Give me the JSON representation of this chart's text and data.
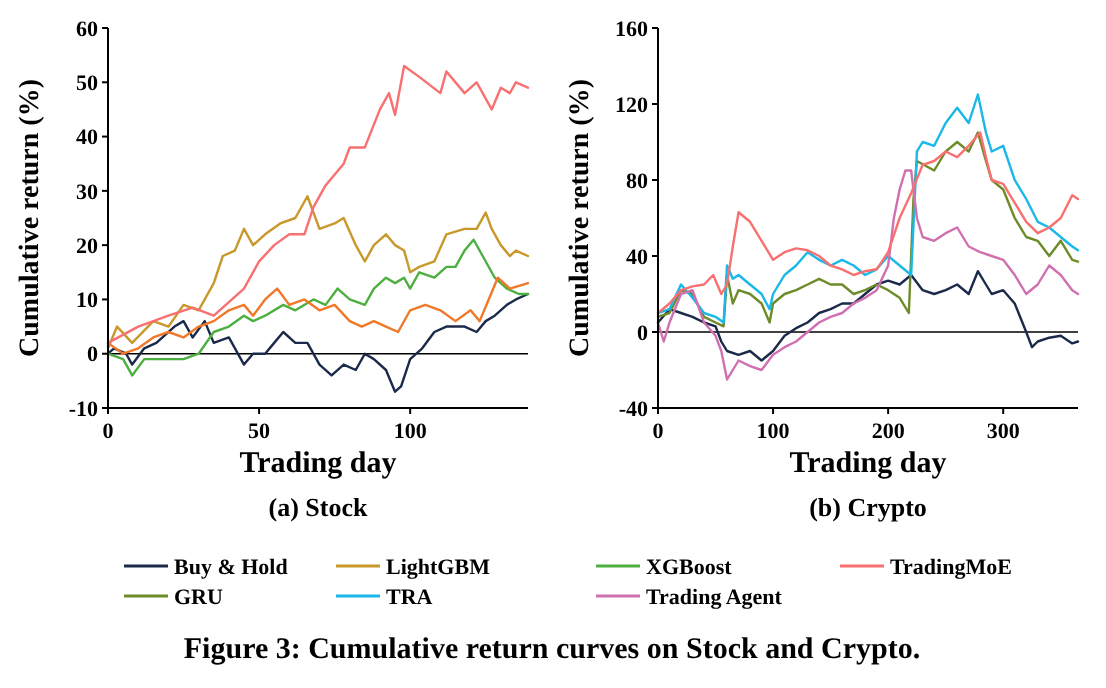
{
  "chart_data": [
    {
      "type": "line",
      "title": "(a) Stock",
      "xlabel": "Trading day",
      "ylabel": "Cumulative return (%)",
      "xlim": [
        0,
        139
      ],
      "xticks": [
        0,
        50,
        100
      ],
      "ylim": [
        -10,
        60
      ],
      "yticks": [
        -10,
        0,
        10,
        20,
        30,
        40,
        50,
        60
      ],
      "legend": "bottom",
      "ref_lines": [
        {
          "axis": "y",
          "value": 0,
          "color": "#000000"
        }
      ],
      "series": [
        {
          "name": "Buy & Hold",
          "color": "#1b2a4a",
          "x": [
            0,
            2,
            6,
            8,
            12,
            16,
            22,
            25,
            28,
            32,
            35,
            40,
            45,
            48,
            52,
            55,
            58,
            62,
            66,
            70,
            74,
            78,
            82,
            85,
            88,
            92,
            95,
            97,
            100,
            104,
            108,
            112,
            118,
            122,
            125,
            128,
            132,
            135,
            139
          ],
          "values": [
            0,
            1,
            0,
            -2,
            1,
            2,
            5,
            6,
            3,
            6,
            2,
            3,
            -2,
            0,
            0,
            2,
            4,
            2,
            2,
            -2,
            -4,
            -2,
            -3,
            0,
            -1,
            -3,
            -7,
            -6,
            -1,
            1,
            4,
            5,
            5,
            4,
            6,
            7,
            9,
            10,
            11
          ]
        },
        {
          "name": "LightGBM",
          "color": "#c8982a",
          "x": [
            0,
            3,
            8,
            15,
            20,
            25,
            30,
            35,
            38,
            42,
            45,
            48,
            52,
            57,
            62,
            66,
            70,
            75,
            78,
            82,
            85,
            88,
            92,
            95,
            98,
            100,
            103,
            108,
            112,
            118,
            122,
            125,
            127,
            130,
            133,
            135,
            139
          ],
          "values": [
            1,
            5,
            2,
            6,
            5,
            9,
            8,
            13,
            18,
            19,
            23,
            20,
            22,
            24,
            25,
            29,
            23,
            24,
            25,
            20,
            17,
            20,
            22,
            20,
            19,
            15,
            16,
            17,
            22,
            23,
            23,
            26,
            23,
            20,
            18,
            19,
            18
          ]
        },
        {
          "name": "XGBoost",
          "color": "#4cb040",
          "x": [
            0,
            5,
            8,
            12,
            18,
            25,
            30,
            35,
            40,
            45,
            48,
            52,
            58,
            62,
            68,
            72,
            76,
            80,
            85,
            88,
            92,
            95,
            98,
            100,
            103,
            108,
            112,
            115,
            118,
            121,
            124,
            128,
            132,
            136,
            139
          ],
          "values": [
            0,
            -1,
            -4,
            -1,
            -1,
            -1,
            0,
            4,
            5,
            7,
            6,
            7,
            9,
            8,
            10,
            9,
            12,
            10,
            9,
            12,
            14,
            13,
            14,
            12,
            15,
            14,
            16,
            16,
            19,
            21,
            18,
            14,
            12,
            11,
            11
          ]
        },
        {
          "color": "#f07828",
          "x": [
            0,
            5,
            10,
            15,
            20,
            25,
            30,
            35,
            40,
            45,
            48,
            52,
            56,
            60,
            65,
            70,
            75,
            80,
            84,
            88,
            92,
            96,
            100,
            105,
            110,
            115,
            120,
            123,
            126,
            129,
            133,
            139
          ],
          "values": [
            2,
            0,
            1,
            3,
            4,
            3,
            5,
            6,
            8,
            9,
            7,
            10,
            12,
            9,
            10,
            8,
            9,
            6,
            5,
            6,
            5,
            4,
            8,
            9,
            8,
            6,
            8,
            6,
            10,
            14,
            12,
            13
          ]
        },
        {
          "name": "TradingMoE",
          "color": "#f87070",
          "x": [
            0,
            10,
            20,
            28,
            35,
            45,
            50,
            55,
            60,
            65,
            68,
            72,
            78,
            80,
            85,
            90,
            93,
            95,
            98,
            103,
            110,
            112,
            118,
            122,
            125,
            127,
            130,
            133,
            135,
            139
          ],
          "values": [
            2,
            5,
            7,
            8.5,
            7,
            12,
            17,
            20,
            22,
            22,
            27,
            31,
            35,
            38,
            38,
            45,
            48,
            44,
            53,
            51,
            48,
            52,
            48,
            50,
            47,
            45,
            49,
            48,
            50,
            49
          ]
        }
      ]
    },
    {
      "type": "line",
      "title": "(b) Crypto",
      "xlabel": "Trading day",
      "ylabel": "Cumulative return (%)",
      "xlim": [
        0,
        365
      ],
      "xticks": [
        0,
        100,
        200,
        300
      ],
      "ylim": [
        -40,
        160
      ],
      "yticks": [
        -40,
        0,
        40,
        80,
        120,
        160
      ],
      "legend": "bottom",
      "ref_lines": [
        {
          "axis": "y",
          "value": 0,
          "color": "#000000"
        }
      ],
      "annotations": [
        "Figure 3: Cumulative return curves on Stock and Crypto."
      ],
      "series": [
        {
          "name": "Buy & Hold",
          "color": "#1b2a4a",
          "x": [
            0,
            10,
            20,
            30,
            40,
            50,
            55,
            60,
            70,
            80,
            90,
            100,
            110,
            120,
            130,
            140,
            150,
            160,
            170,
            180,
            190,
            200,
            210,
            220,
            230,
            240,
            250,
            260,
            270,
            278,
            285,
            290,
            300,
            310,
            320,
            325,
            330,
            340,
            350,
            360,
            365
          ],
          "values": [
            5,
            12,
            10,
            8,
            5,
            3,
            -5,
            -10,
            -12,
            -10,
            -15,
            -10,
            -2,
            2,
            5,
            10,
            12,
            15,
            15,
            20,
            25,
            27,
            25,
            30,
            22,
            20,
            22,
            25,
            20,
            32,
            25,
            20,
            22,
            15,
            0,
            -8,
            -5,
            -3,
            -2,
            -6,
            -5
          ]
        },
        {
          "name": "GRU",
          "color": "#6e8b2a",
          "x": [
            0,
            10,
            20,
            30,
            40,
            50,
            57,
            60,
            65,
            70,
            80,
            90,
            97,
            100,
            110,
            120,
            130,
            140,
            150,
            160,
            170,
            180,
            190,
            200,
            210,
            218,
            222,
            225,
            240,
            250,
            260,
            270,
            278,
            285,
            290,
            300,
            310,
            320,
            330,
            340,
            350,
            360,
            365
          ],
          "values": [
            8,
            10,
            22,
            20,
            8,
            5,
            3,
            30,
            15,
            22,
            20,
            15,
            5,
            15,
            20,
            22,
            25,
            28,
            25,
            25,
            20,
            22,
            25,
            22,
            18,
            10,
            70,
            90,
            85,
            95,
            100,
            95,
            105,
            90,
            80,
            75,
            60,
            50,
            48,
            40,
            48,
            38,
            37
          ]
        },
        {
          "name": "TRA",
          "color": "#1ab8e8",
          "x": [
            0,
            10,
            20,
            30,
            40,
            50,
            57,
            60,
            65,
            70,
            80,
            90,
            97,
            100,
            110,
            120,
            130,
            140,
            150,
            160,
            170,
            180,
            190,
            200,
            210,
            220,
            225,
            230,
            240,
            250,
            260,
            270,
            278,
            285,
            290,
            300,
            310,
            320,
            330,
            340,
            350,
            360,
            365
          ],
          "values": [
            10,
            12,
            25,
            18,
            10,
            8,
            5,
            35,
            28,
            30,
            25,
            20,
            12,
            20,
            30,
            35,
            42,
            38,
            35,
            38,
            35,
            30,
            33,
            40,
            35,
            30,
            95,
            100,
            98,
            110,
            118,
            110,
            125,
            105,
            95,
            98,
            80,
            70,
            58,
            55,
            50,
            45,
            43
          ]
        },
        {
          "name": "Trading Agent",
          "color": "#d070b0",
          "x": [
            0,
            5,
            10,
            20,
            30,
            40,
            50,
            55,
            60,
            70,
            80,
            90,
            100,
            110,
            120,
            130,
            140,
            150,
            160,
            170,
            180,
            190,
            200,
            205,
            210,
            215,
            220,
            225,
            230,
            240,
            250,
            260,
            270,
            280,
            290,
            300,
            310,
            320,
            330,
            340,
            350,
            360,
            365
          ],
          "values": [
            5,
            -5,
            5,
            20,
            22,
            5,
            -2,
            -10,
            -25,
            -15,
            -18,
            -20,
            -12,
            -8,
            -5,
            0,
            5,
            8,
            10,
            15,
            18,
            22,
            35,
            60,
            75,
            85,
            85,
            60,
            50,
            48,
            52,
            55,
            45,
            42,
            40,
            38,
            30,
            20,
            25,
            35,
            30,
            22,
            20
          ]
        },
        {
          "name": "TradingMoE",
          "color": "#f87070",
          "x": [
            0,
            10,
            20,
            30,
            40,
            48,
            55,
            60,
            65,
            70,
            80,
            90,
            100,
            110,
            120,
            130,
            140,
            150,
            160,
            170,
            180,
            190,
            200,
            210,
            220,
            230,
            240,
            250,
            260,
            270,
            280,
            285,
            290,
            300,
            310,
            320,
            330,
            340,
            350,
            360,
            365
          ],
          "values": [
            10,
            15,
            22,
            24,
            25,
            30,
            20,
            25,
            45,
            63,
            58,
            48,
            38,
            42,
            44,
            43,
            40,
            35,
            33,
            30,
            32,
            33,
            42,
            60,
            73,
            88,
            90,
            95,
            92,
            98,
            105,
            92,
            80,
            78,
            68,
            58,
            52,
            55,
            60,
            72,
            70
          ]
        }
      ]
    }
  ]
}
